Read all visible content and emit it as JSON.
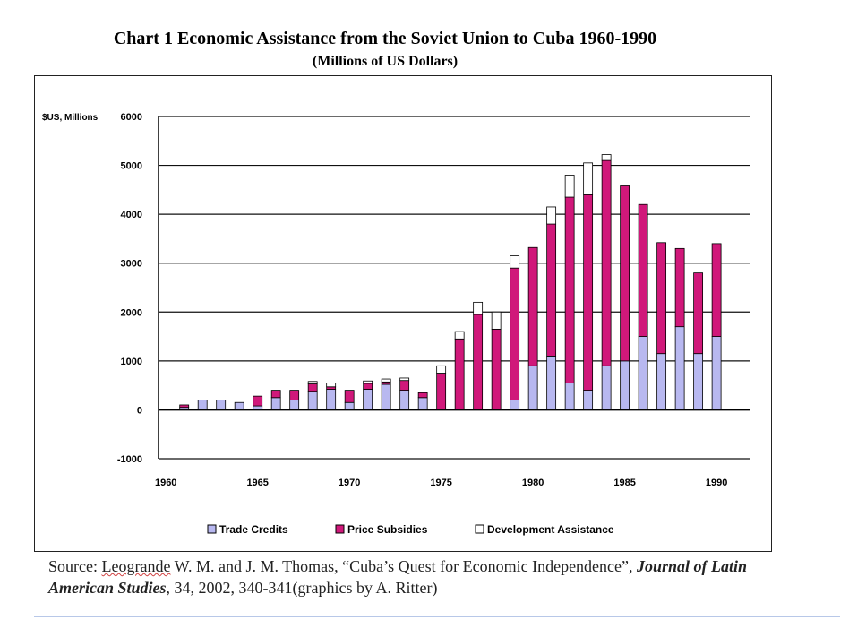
{
  "chart_data": {
    "type": "bar",
    "stacked": true,
    "title": "Chart 1 Economic Assistance from the Soviet Union to Cuba 1960-1990",
    "subtitle": "(Millions of US Dollars)",
    "ylabel": "$US, Millions",
    "xlabel": "",
    "ylim": [
      -1000,
      6000
    ],
    "yticks": [
      -1000,
      0,
      1000,
      2000,
      3000,
      4000,
      5000,
      6000
    ],
    "xticks": [
      1960,
      1965,
      1970,
      1975,
      1980,
      1985,
      1990
    ],
    "grid": true,
    "legend_position": "bottom",
    "categories": [
      1961,
      1962,
      1963,
      1964,
      1965,
      1966,
      1967,
      1968,
      1969,
      1970,
      1971,
      1972,
      1973,
      1974,
      1975,
      1976,
      1977,
      1978,
      1979,
      1980,
      1981,
      1982,
      1983,
      1984,
      1985,
      1986,
      1987,
      1988,
      1989,
      1990
    ],
    "series": [
      {
        "name": "Trade Credits",
        "color": "#b8b8f0",
        "values": [
          50,
          200,
          200,
          150,
          80,
          250,
          200,
          380,
          420,
          150,
          420,
          520,
          400,
          250,
          0,
          0,
          0,
          0,
          200,
          900,
          1100,
          550,
          400,
          900,
          1000,
          1500,
          1150,
          1700,
          1150,
          1500
        ]
      },
      {
        "name": "Price Subsidies",
        "color": "#d0187a",
        "values": [
          50,
          0,
          0,
          0,
          200,
          150,
          200,
          150,
          50,
          250,
          120,
          50,
          200,
          100,
          750,
          1450,
          1950,
          1650,
          2700,
          2420,
          2700,
          3800,
          4000,
          4200,
          3580,
          2700,
          2270,
          1600,
          1650,
          1900
        ]
      },
      {
        "name": "Development Assistance",
        "color": "#ffffff",
        "values": [
          0,
          0,
          0,
          0,
          0,
          0,
          0,
          50,
          80,
          0,
          50,
          60,
          50,
          0,
          150,
          150,
          250,
          350,
          250,
          0,
          350,
          450,
          650,
          120,
          0,
          0,
          0,
          0,
          0,
          0
        ]
      }
    ],
    "source": {
      "prefix": "Source: ",
      "authors": "Leogrande",
      "rest1": " W. M. and J. M. Thomas, “Cuba’s Quest for Economic Independence”, ",
      "journal": "Journal of Latin American Studies",
      "rest2": ", 34, 2002, 340-341(graphics by A. Ritter)"
    }
  }
}
